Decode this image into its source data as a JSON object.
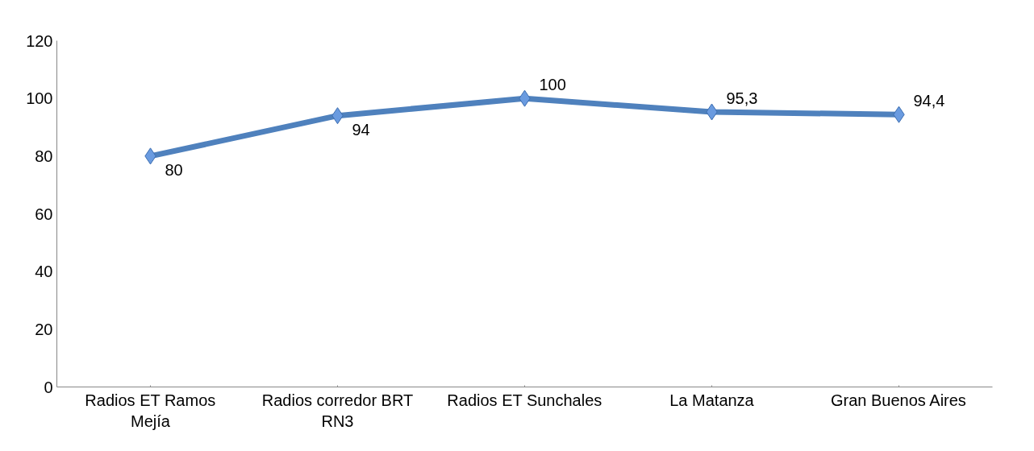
{
  "chart_data": {
    "type": "line",
    "categories": [
      "Radios ET Ramos Mejía",
      "Radios corredor BRT RN3",
      "Radios ET Sunchales",
      "La Matanza",
      "Gran Buenos Aires"
    ],
    "series": [
      {
        "color": "#4f81bd",
        "values": [
          80,
          94,
          100,
          95.3,
          94.4
        ],
        "value_labels": [
          "80",
          "94",
          "100",
          "95,3",
          "94,4"
        ]
      }
    ],
    "ylim": [
      0,
      120
    ],
    "yticks": [
      0,
      20,
      40,
      60,
      80,
      100,
      120
    ],
    "grid": false,
    "marker": "diamond",
    "line_style": "solid"
  }
}
